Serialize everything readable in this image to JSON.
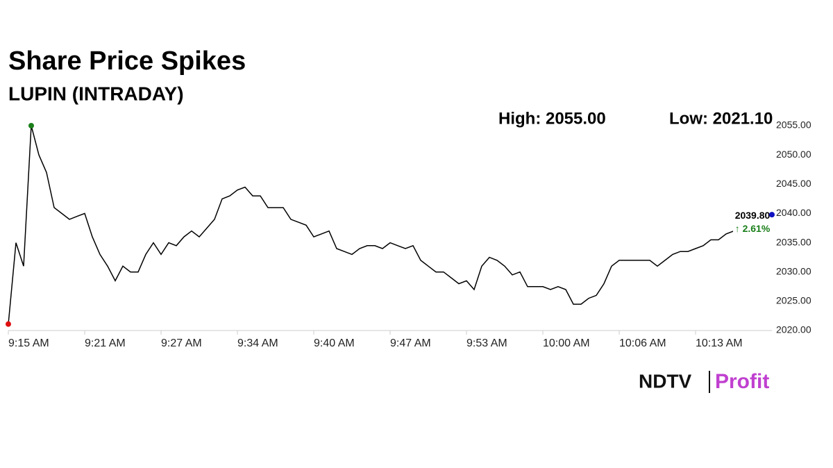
{
  "chart_data": {
    "type": "line",
    "title": "Share Price Spikes",
    "subtitle": "LUPIN (INTRADAY)",
    "annotations": {
      "high": "High: 2055.00",
      "low": "Low: 2021.10",
      "last": "2039.80",
      "change": "↑ 2.61%"
    },
    "brand": {
      "left": "NDTV",
      "right": "Profit"
    },
    "categories": [
      "9:15 AM",
      null,
      null,
      null,
      null,
      null,
      null,
      null,
      null,
      null,
      "9:21 AM",
      null,
      null,
      null,
      null,
      null,
      null,
      null,
      null,
      null,
      "9:27 AM",
      null,
      null,
      null,
      null,
      null,
      null,
      null,
      null,
      null,
      "9:34 AM",
      null,
      null,
      null,
      null,
      null,
      null,
      null,
      null,
      null,
      "9:40 AM",
      null,
      null,
      null,
      null,
      null,
      null,
      null,
      null,
      null,
      "9:47 AM",
      null,
      null,
      null,
      null,
      null,
      null,
      null,
      null,
      null,
      "9:53 AM",
      null,
      null,
      null,
      null,
      null,
      null,
      null,
      null,
      null,
      "10:00 AM",
      null,
      null,
      null,
      null,
      null,
      null,
      null,
      null,
      null,
      "10:06 AM",
      null,
      null,
      null,
      null,
      null,
      null,
      null,
      null,
      null,
      "10:13 AM",
      null,
      null,
      null,
      null,
      null,
      null,
      null,
      null,
      null,
      null
    ],
    "series": [
      {
        "name": "LUPIN",
        "color": "#000000",
        "values": [
          2021.1,
          2035,
          2031,
          2055,
          2050,
          2047,
          2041,
          2040,
          2039,
          2039.5,
          2040,
          2036,
          2033,
          2031,
          2028.5,
          2031,
          2030,
          2030,
          2033,
          2035,
          2033,
          2035,
          2034.5,
          2036,
          2037,
          2036,
          2037.5,
          2039,
          2042.5,
          2043,
          2044,
          2044.5,
          2043,
          2043,
          2041,
          2041,
          2041,
          2039,
          2038.5,
          2038,
          2036,
          2036.5,
          2037,
          2034,
          2033.5,
          2033,
          2034,
          2034.5,
          2034.5,
          2034,
          2035,
          2034.5,
          2034,
          2034.5,
          2032,
          2031,
          2030,
          2030,
          2029,
          2028,
          2028.5,
          2027,
          2031,
          2032.5,
          2032,
          2031,
          2029.5,
          2030,
          2027.5,
          2027.5,
          2027.5,
          2027,
          2027.5,
          2027,
          2024.5,
          2024.5,
          2025.5,
          2026,
          2028,
          2031,
          2032,
          2032,
          2032,
          2032,
          2032,
          2031,
          2032,
          2033,
          2033.5,
          2033.5,
          2034,
          2034.5,
          2035.5,
          2035.5,
          2036.5,
          2037,
          2038,
          2039,
          2039.5,
          2040,
          2039.8
        ]
      }
    ],
    "markers": {
      "high_index": 3,
      "low_index": 0,
      "last_index": 100,
      "high_color": "#1a7f1a",
      "low_color": "#e01010",
      "last_color": "#1010c0"
    },
    "ylim": [
      2020,
      2055
    ],
    "yticks": [
      {
        "value": 2020,
        "label": "2020.00"
      },
      {
        "value": 2025,
        "label": "2025.00"
      },
      {
        "value": 2030,
        "label": "2030.00"
      },
      {
        "value": 2035,
        "label": "2035.00"
      },
      {
        "value": 2040,
        "label": "2040.00"
      },
      {
        "value": 2045,
        "label": "2045.00"
      },
      {
        "value": 2050,
        "label": "2050.00"
      },
      {
        "value": 2055,
        "label": "2055.00"
      }
    ],
    "grid": false
  }
}
